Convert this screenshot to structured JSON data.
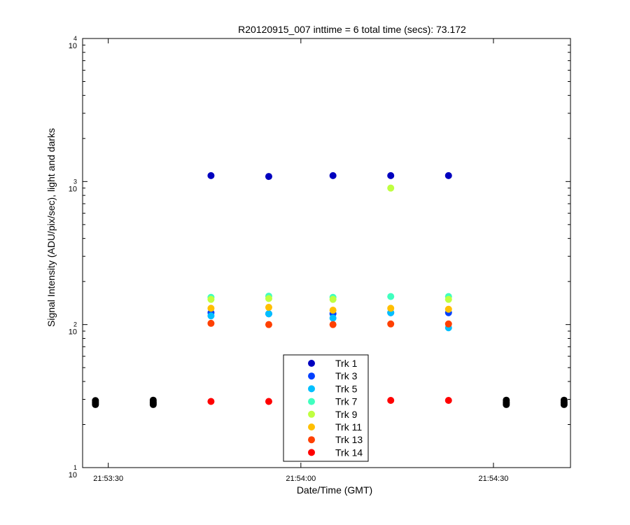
{
  "chart_data": {
    "type": "scatter",
    "title": "R20120915_007 inttime = 6 total time (secs): 73.172",
    "xlabel": "Date/Time (GMT)",
    "ylabel": "Signal Intensity (ADU/pix/sec), light and darks",
    "y_scale": "log",
    "ylim": [
      10,
      10000
    ],
    "xlim": [
      "21:53:26",
      "21:54:42"
    ],
    "x_ticks": [
      "21:53:30",
      "21:54:00",
      "21:54:30"
    ],
    "y_ticks": [
      {
        "base": "10",
        "exp": "1"
      },
      {
        "base": "10",
        "exp": "2"
      },
      {
        "base": "10",
        "exp": "3"
      },
      {
        "base": "10",
        "exp": "4"
      }
    ],
    "grid": false,
    "legend_position": "bottom-center",
    "series": [
      {
        "name": "Trk 1",
        "color": "#0000bf",
        "x": [
          "21:53:46",
          "21:53:55",
          "21:54:05",
          "21:54:14",
          "21:54:23"
        ],
        "y": [
          1100,
          1085,
          1100,
          1100,
          1100
        ]
      },
      {
        "name": "Trk 3",
        "color": "#0040ff",
        "x": [
          "21:53:46",
          "21:53:55",
          "21:54:05",
          "21:54:14",
          "21:54:23"
        ],
        "y": [
          121,
          119,
          119,
          121,
          121
        ]
      },
      {
        "name": "Trk 5",
        "color": "#00bfff",
        "x": [
          "21:53:46",
          "21:53:55",
          "21:54:05",
          "21:54:14",
          "21:54:23"
        ],
        "y": [
          115,
          119,
          111,
          121,
          95
        ]
      },
      {
        "name": "Trk 7",
        "color": "#40ffbf",
        "x": [
          "21:53:46",
          "21:53:55",
          "21:54:05",
          "21:54:14",
          "21:54:23"
        ],
        "y": [
          155,
          158,
          155,
          157,
          157
        ]
      },
      {
        "name": "Trk 9",
        "color": "#bfff40",
        "x": [
          "21:53:46",
          "21:53:55",
          "21:54:05",
          "21:54:14",
          "21:54:23"
        ],
        "y": [
          150,
          152,
          150,
          900,
          150
        ]
      },
      {
        "name": "Trk 11",
        "color": "#ffbf00",
        "x": [
          "21:53:46",
          "21:53:55",
          "21:54:05",
          "21:54:14",
          "21:54:23"
        ],
        "y": [
          130,
          132,
          126,
          130,
          128
        ]
      },
      {
        "name": "Trk 13",
        "color": "#ff4000",
        "x": [
          "21:53:46",
          "21:53:55",
          "21:54:05",
          "21:54:14",
          "21:54:23"
        ],
        "y": [
          102,
          100,
          100,
          101,
          101
        ]
      },
      {
        "name": "Trk 14",
        "color": "#ff0000",
        "x": [
          "21:53:46",
          "21:53:55",
          "21:54:05",
          "21:54:14",
          "21:54:23"
        ],
        "y": [
          29,
          29,
          29,
          29.5,
          29.5
        ]
      }
    ],
    "darks": {
      "color": "#000000",
      "x": [
        "21:53:28",
        "21:53:28",
        "21:53:28",
        "21:53:28",
        "21:53:37",
        "21:53:37",
        "21:53:37",
        "21:53:37",
        "21:54:32",
        "21:54:32",
        "21:54:32",
        "21:54:32",
        "21:54:41",
        "21:54:41",
        "21:54:41",
        "21:54:41"
      ],
      "y": [
        27.6,
        28.2,
        28.8,
        29.4,
        27.6,
        28.2,
        28.8,
        29.6,
        27.6,
        28.2,
        28.8,
        29.6,
        27.6,
        28.2,
        28.8,
        29.6
      ]
    }
  }
}
